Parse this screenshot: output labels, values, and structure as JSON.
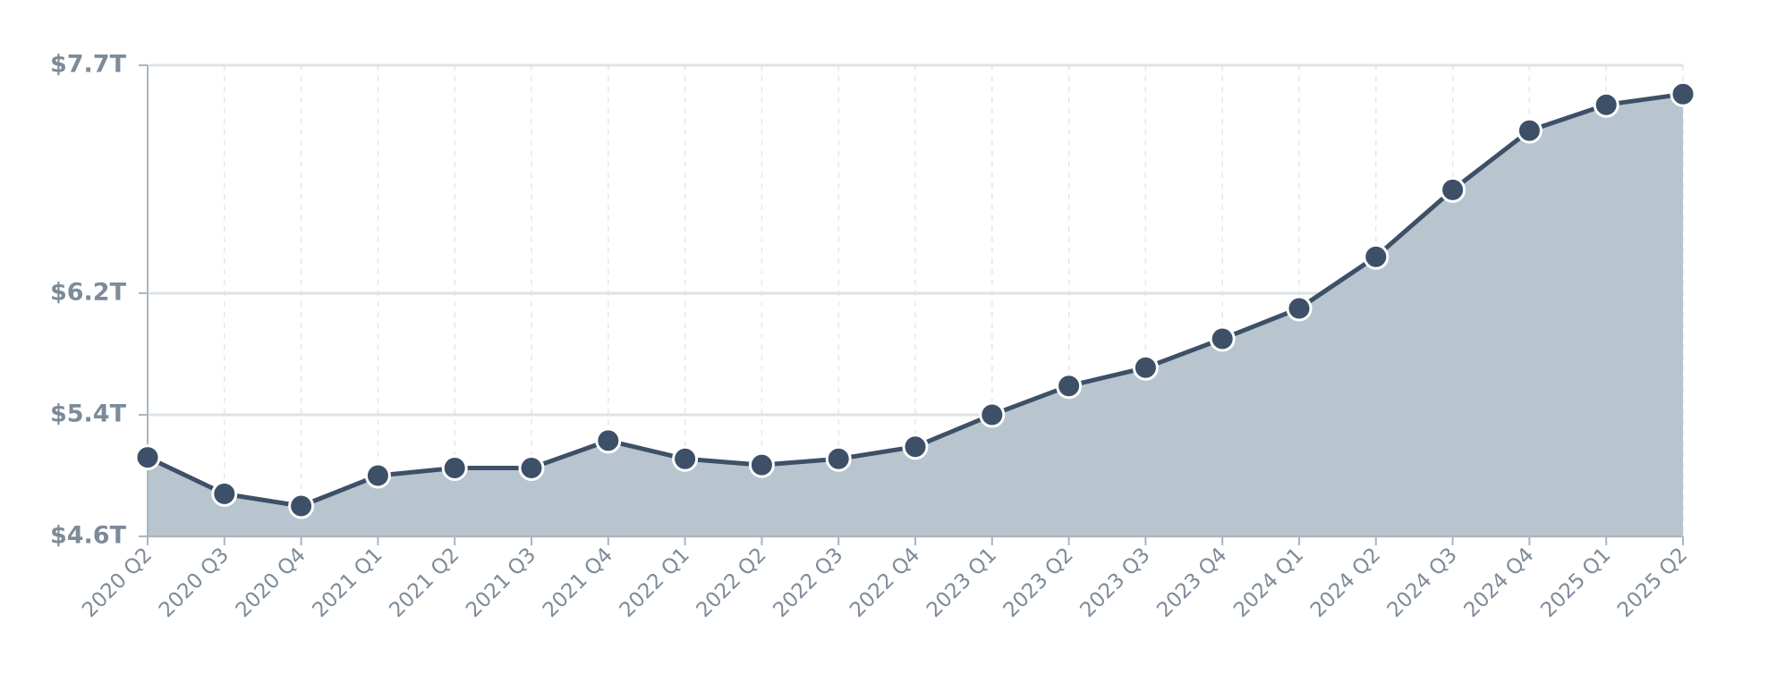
{
  "chart_data": {
    "type": "area",
    "categories": [
      "2020 Q2",
      "2020 Q3",
      "2020 Q4",
      "2021 Q1",
      "2021 Q2",
      "2021 Q3",
      "2021 Q4",
      "2022 Q1",
      "2022 Q2",
      "2022 Q3",
      "2022 Q4",
      "2023 Q1",
      "2023 Q2",
      "2023 Q3",
      "2023 Q4",
      "2024 Q1",
      "2024 Q2",
      "2024 Q3",
      "2024 Q4",
      "2025 Q1",
      "2025 Q2"
    ],
    "values": [
      5.12,
      4.88,
      4.8,
      5.0,
      5.05,
      5.05,
      5.23,
      5.11,
      5.07,
      5.11,
      5.19,
      5.4,
      5.59,
      5.71,
      5.9,
      6.1,
      6.44,
      6.88,
      7.27,
      7.44,
      7.51
    ],
    "color": "#3d5068",
    "fill": "#b8c4ce",
    "ylim": [
      4.6,
      7.7
    ],
    "yticks": [
      {
        "value": 4.6,
        "label": "$4.6T"
      },
      {
        "value": 5.4,
        "label": "$5.4T"
      },
      {
        "value": 6.2,
        "label": "$6.2T"
      },
      {
        "value": 7.7,
        "label": "$7.7T"
      }
    ],
    "grid": true
  }
}
